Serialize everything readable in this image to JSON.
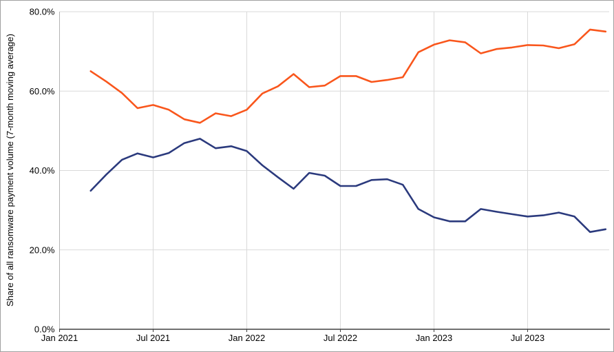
{
  "chart_data": {
    "type": "line",
    "x": [
      "Mar 2021",
      "Apr 2021",
      "May 2021",
      "Jun 2021",
      "Jul 2021",
      "Aug 2021",
      "Sep 2021",
      "Oct 2021",
      "Nov 2021",
      "Dec 2021",
      "Jan 2022",
      "Feb 2022",
      "Mar 2022",
      "Apr 2022",
      "May 2022",
      "Jun 2022",
      "Jul 2022",
      "Aug 2022",
      "Sep 2022",
      "Oct 2022",
      "Nov 2022",
      "Dec 2022",
      "Jan 2023",
      "Feb 2023",
      "Mar 2023",
      "Apr 2023",
      "May 2023",
      "Jun 2023",
      "Jul 2023",
      "Aug 2023",
      "Sep 2023",
      "Oct 2023",
      "Nov 2023",
      "Dec 2023"
    ],
    "series": [
      {
        "name": "orange-line",
        "color": "#f9561c",
        "values": [
          65.0,
          62.4,
          59.5,
          55.7,
          56.5,
          55.3,
          52.9,
          52.0,
          54.4,
          53.7,
          55.3,
          59.4,
          61.2,
          64.3,
          61.0,
          61.4,
          63.8,
          63.8,
          62.3,
          62.8,
          63.5,
          69.8,
          71.7,
          72.8,
          72.3,
          69.5,
          70.6,
          71.0,
          71.6,
          71.5,
          70.8,
          71.8,
          75.5,
          75.0
        ]
      },
      {
        "name": "navy-line",
        "color": "#2b3a7d",
        "values": [
          34.9,
          39.0,
          42.7,
          44.3,
          43.3,
          44.4,
          46.9,
          48.0,
          45.6,
          46.1,
          44.9,
          41.3,
          38.3,
          35.4,
          39.4,
          38.7,
          36.1,
          36.1,
          37.6,
          37.8,
          36.4,
          30.3,
          28.2,
          27.2,
          27.2,
          30.3,
          29.6,
          29.0,
          28.4,
          28.7,
          29.4,
          28.4,
          24.5,
          25.2
        ]
      }
    ],
    "ylabel": "Share of all ransomware payment volume (7-month moving average)",
    "xlabel": "",
    "ylim": [
      0,
      80
    ],
    "y_ticks": [
      0,
      20,
      40,
      60,
      80
    ],
    "y_tick_labels": [
      "0.0%",
      "20.0%",
      "40.0%",
      "60.0%",
      "80.0%"
    ],
    "x_tick_labels": [
      "Jan 2021",
      "Jul 2021",
      "Jan 2022",
      "Jul 2022",
      "Jan 2023",
      "Jul 2023"
    ],
    "x_tick_month_indices": [
      0,
      6,
      12,
      18,
      24,
      30
    ],
    "first_month_index": 2,
    "grid": true,
    "legend": "none",
    "colors": {
      "grid_line": "#d9d9d9",
      "left_axis_line": "#b3b3b3",
      "bottom_axis_line": "#404040",
      "tick_label_text": "#000000",
      "frame_border": "#a0a0a0"
    }
  }
}
